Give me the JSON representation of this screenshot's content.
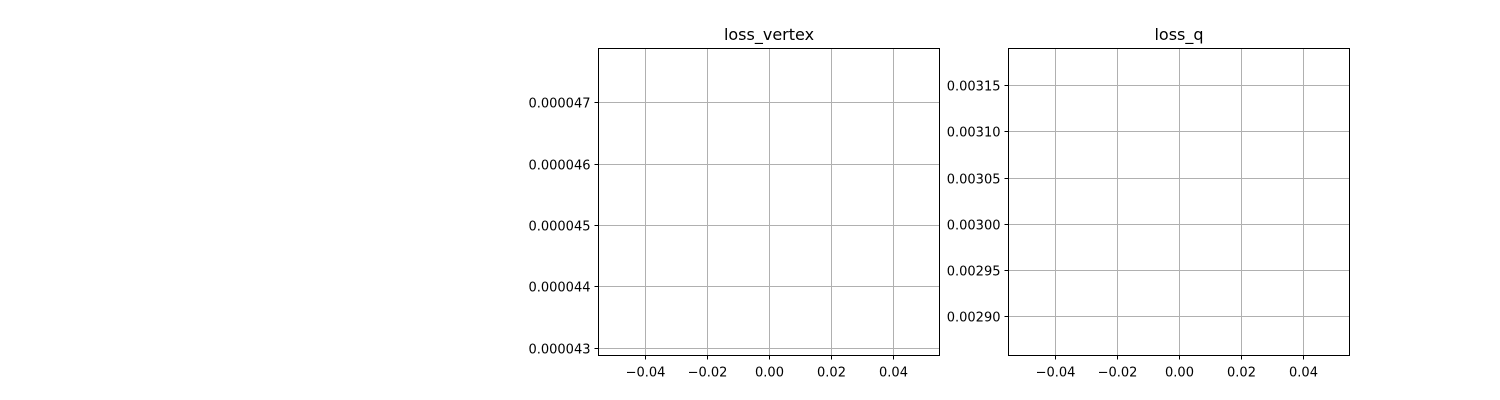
{
  "chart_data": [
    {
      "type": "line",
      "title": "loss_vertex",
      "xlabel": "",
      "ylabel": "",
      "grid": true,
      "xlim": [
        -0.055,
        0.055
      ],
      "ylim": [
        4.287e-05,
        4.788e-05
      ],
      "xticks": [
        -0.04,
        -0.02,
        0.0,
        0.02,
        0.04
      ],
      "xtick_labels": [
        "−0.04",
        "−0.02",
        "0.00",
        "0.02",
        "0.04"
      ],
      "yticks": [
        4.3e-05,
        4.4e-05,
        4.5e-05,
        4.6e-05,
        4.7e-05
      ],
      "ytick_labels": [
        "0.000043",
        "0.000044",
        "0.000045",
        "0.000046",
        "0.000047"
      ],
      "series": [
        {
          "x": [],
          "y": []
        }
      ]
    },
    {
      "type": "line",
      "title": "loss_q",
      "xlabel": "",
      "ylabel": "",
      "grid": true,
      "xlim": [
        -0.055,
        0.055
      ],
      "ylim": [
        0.002857,
        0.00319
      ],
      "xticks": [
        -0.04,
        -0.02,
        0.0,
        0.02,
        0.04
      ],
      "xtick_labels": [
        "−0.04",
        "−0.02",
        "0.00",
        "0.02",
        "0.04"
      ],
      "yticks": [
        0.0029,
        0.00295,
        0.003,
        0.00305,
        0.0031,
        0.00315
      ],
      "ytick_labels": [
        "0.00290",
        "0.00295",
        "0.00300",
        "0.00305",
        "0.00310",
        "0.00315"
      ],
      "series": [
        {
          "x": [],
          "y": []
        }
      ]
    }
  ],
  "colors": {
    "grid": "#b0b0b0",
    "axes": "#000000",
    "background": "#ffffff"
  }
}
